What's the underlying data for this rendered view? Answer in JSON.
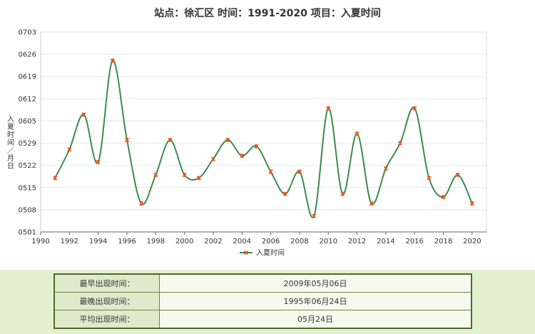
{
  "chart_data": {
    "type": "line",
    "title": "站点：徐汇区 时间：1991-2020   项目：入夏时间",
    "xlabel": "",
    "ylabel": "入夏时间／月日",
    "x": [
      1991,
      1992,
      1993,
      1994,
      1995,
      1996,
      1997,
      1998,
      1999,
      2000,
      2001,
      2002,
      2003,
      2004,
      2005,
      2006,
      2007,
      2008,
      2009,
      2010,
      2011,
      2012,
      2013,
      2014,
      2015,
      2016,
      2017,
      2018,
      2019,
      2020
    ],
    "series": [
      {
        "name": "入夏时间",
        "values": [
          "0518",
          "0527",
          "0607",
          "0523",
          "0624",
          "0530",
          "0510",
          "0519",
          "0530",
          "0519",
          "0518",
          "0524",
          "0530",
          "0525",
          "0528",
          "0520",
          "0513",
          "0520",
          "0506",
          "0609",
          "0513",
          "0601",
          "0510",
          "0521",
          "0529",
          "0609",
          "0518",
          "0512",
          "0519",
          "0510"
        ]
      }
    ],
    "xlim": [
      1990,
      2021
    ],
    "ylim": [
      "0501",
      "0703"
    ],
    "x_ticks": [
      "1990",
      "1992",
      "1994",
      "1996",
      "1998",
      "2000",
      "2002",
      "2004",
      "2006",
      "2008",
      "2010",
      "2012",
      "2014",
      "2016",
      "2018",
      "2020"
    ],
    "y_ticks": [
      "0501",
      "0508",
      "0515",
      "0522",
      "0529",
      "0605",
      "0612",
      "0619",
      "0626",
      "0703"
    ],
    "legend": "bottom-center",
    "grid": true,
    "colors": {
      "line": "#3a8b4f",
      "marker": "#e8551f"
    }
  },
  "stats": [
    {
      "label": "最早出现时间：",
      "value": "2009年05月06日"
    },
    {
      "label": "最晚出现时间：",
      "value": "1995年06月24日"
    },
    {
      "label": "平均出现时间：",
      "value": "05月24日"
    }
  ]
}
